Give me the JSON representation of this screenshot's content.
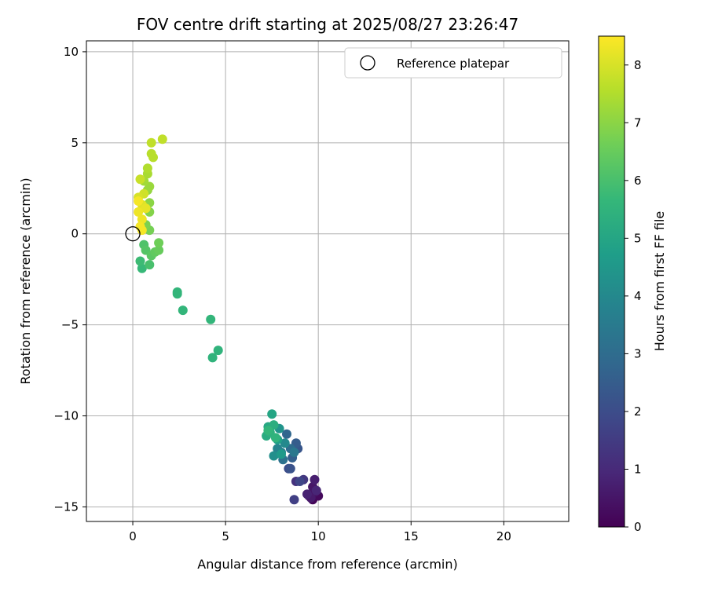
{
  "chart_data": {
    "type": "scatter",
    "title": "FOV centre drift starting at 2025/08/27 23:26:47",
    "xlabel": "Angular distance from reference (arcmin)",
    "ylabel": "Rotation from reference (arcmin)",
    "xlim": [
      -2.5,
      23.5
    ],
    "ylim": [
      -15.8,
      10.6
    ],
    "xticks": [
      0,
      5,
      10,
      15,
      20
    ],
    "yticks": [
      -15,
      -10,
      -5,
      0,
      5,
      10
    ],
    "xtick_labels": [
      "0",
      "5",
      "10",
      "15",
      "20"
    ],
    "ytick_labels": [
      "−15",
      "−10",
      "−5",
      "0",
      "5",
      "10"
    ],
    "grid": true,
    "legend": {
      "position": "top-right",
      "entries": [
        "Reference platepar"
      ]
    },
    "reference_point": {
      "x": 0,
      "y": 0,
      "marker": "open-circle",
      "label": "Reference platepar"
    },
    "colorbar": {
      "label": "Hours from first FF file",
      "range": [
        0,
        8.5
      ],
      "ticks": [
        0,
        1,
        2,
        3,
        4,
        5,
        6,
        7,
        8
      ],
      "tick_labels": [
        "0",
        "1",
        "2",
        "3",
        "4",
        "5",
        "6",
        "7",
        "8"
      ],
      "colormap": "viridis"
    },
    "colormap_stops": [
      "#440154",
      "#482878",
      "#3e4989",
      "#31688e",
      "#26828e",
      "#1f9e89",
      "#35b779",
      "#6ece58",
      "#b5de2b",
      "#fde725"
    ],
    "series": [
      {
        "color_by": "hours",
        "points": [
          {
            "x": 9.7,
            "y": -14.6,
            "h": 0.1
          },
          {
            "x": 10.0,
            "y": -14.4,
            "h": 0.2
          },
          {
            "x": 9.5,
            "y": -14.4,
            "h": 0.3
          },
          {
            "x": 9.8,
            "y": -14.2,
            "h": 0.4
          },
          {
            "x": 9.7,
            "y": -13.9,
            "h": 0.5
          },
          {
            "x": 9.6,
            "y": -14.5,
            "h": 0.6
          },
          {
            "x": 9.8,
            "y": -13.5,
            "h": 0.7
          },
          {
            "x": 9.4,
            "y": -14.3,
            "h": 0.8
          },
          {
            "x": 9.9,
            "y": -14.1,
            "h": 0.9
          },
          {
            "x": 8.8,
            "y": -13.6,
            "h": 1.2
          },
          {
            "x": 9.2,
            "y": -13.5,
            "h": 1.4
          },
          {
            "x": 8.7,
            "y": -14.6,
            "h": 1.6
          },
          {
            "x": 9.0,
            "y": -13.6,
            "h": 1.8
          },
          {
            "x": 8.4,
            "y": -12.9,
            "h": 2.0
          },
          {
            "x": 8.5,
            "y": -12.9,
            "h": 2.2
          },
          {
            "x": 8.9,
            "y": -11.8,
            "h": 2.3
          },
          {
            "x": 8.8,
            "y": -11.5,
            "h": 2.5
          },
          {
            "x": 8.6,
            "y": -12.3,
            "h": 2.6
          },
          {
            "x": 8.3,
            "y": -11.0,
            "h": 2.8
          },
          {
            "x": 8.5,
            "y": -11.8,
            "h": 3.0
          },
          {
            "x": 8.1,
            "y": -12.4,
            "h": 3.2
          },
          {
            "x": 8.7,
            "y": -12.0,
            "h": 3.4
          },
          {
            "x": 8.0,
            "y": -12.0,
            "h": 3.6
          },
          {
            "x": 7.8,
            "y": -11.8,
            "h": 3.8
          },
          {
            "x": 8.2,
            "y": -11.5,
            "h": 4.0
          },
          {
            "x": 7.6,
            "y": -12.2,
            "h": 4.2
          },
          {
            "x": 7.9,
            "y": -10.7,
            "h": 4.4
          },
          {
            "x": 8.0,
            "y": -12.1,
            "h": 4.6
          },
          {
            "x": 7.8,
            "y": -11.3,
            "h": 4.8
          },
          {
            "x": 7.5,
            "y": -9.9,
            "h": 5.0
          },
          {
            "x": 7.3,
            "y": -10.6,
            "h": 5.1
          },
          {
            "x": 7.2,
            "y": -11.1,
            "h": 5.2
          },
          {
            "x": 7.6,
            "y": -10.5,
            "h": 5.3
          },
          {
            "x": 7.4,
            "y": -10.9,
            "h": 5.4
          },
          {
            "x": 7.7,
            "y": -11.2,
            "h": 5.5
          },
          {
            "x": 7.3,
            "y": -10.8,
            "h": 5.6
          },
          {
            "x": 4.6,
            "y": -6.4,
            "h": 5.5
          },
          {
            "x": 4.3,
            "y": -6.8,
            "h": 5.5
          },
          {
            "x": 4.2,
            "y": -4.7,
            "h": 5.6
          },
          {
            "x": 2.7,
            "y": -4.2,
            "h": 5.6
          },
          {
            "x": 2.4,
            "y": -3.2,
            "h": 5.6
          },
          {
            "x": 2.4,
            "y": -3.3,
            "h": 5.6
          },
          {
            "x": 0.5,
            "y": -1.9,
            "h": 5.7
          },
          {
            "x": 0.4,
            "y": -1.5,
            "h": 5.8
          },
          {
            "x": 0.9,
            "y": -1.7,
            "h": 6.0
          },
          {
            "x": 0.6,
            "y": -0.6,
            "h": 6.1
          },
          {
            "x": 0.7,
            "y": -0.9,
            "h": 6.2
          },
          {
            "x": 1.0,
            "y": -1.2,
            "h": 6.3
          },
          {
            "x": 1.2,
            "y": -1.0,
            "h": 6.4
          },
          {
            "x": 1.4,
            "y": -0.9,
            "h": 6.5
          },
          {
            "x": 1.4,
            "y": -0.5,
            "h": 6.6
          },
          {
            "x": 0.9,
            "y": 0.2,
            "h": 6.7
          },
          {
            "x": 0.7,
            "y": 0.5,
            "h": 6.8
          },
          {
            "x": 0.9,
            "y": 1.2,
            "h": 6.9
          },
          {
            "x": 0.9,
            "y": 1.7,
            "h": 7.0
          },
          {
            "x": 0.8,
            "y": 2.4,
            "h": 7.1
          },
          {
            "x": 0.9,
            "y": 2.6,
            "h": 7.2
          },
          {
            "x": 0.6,
            "y": 2.9,
            "h": 7.3
          },
          {
            "x": 0.8,
            "y": 3.3,
            "h": 7.4
          },
          {
            "x": 0.8,
            "y": 3.6,
            "h": 7.5
          },
          {
            "x": 1.1,
            "y": 4.2,
            "h": 7.6
          },
          {
            "x": 1.0,
            "y": 4.4,
            "h": 7.6
          },
          {
            "x": 1.6,
            "y": 5.2,
            "h": 7.7
          },
          {
            "x": 1.0,
            "y": 5.0,
            "h": 7.7
          },
          {
            "x": 0.4,
            "y": 3.0,
            "h": 7.8
          },
          {
            "x": 0.6,
            "y": 2.2,
            "h": 7.9
          },
          {
            "x": 0.3,
            "y": 2.0,
            "h": 8.0
          },
          {
            "x": 0.5,
            "y": 1.6,
            "h": 8.1
          },
          {
            "x": 0.7,
            "y": 1.4,
            "h": 8.2
          },
          {
            "x": 0.3,
            "y": 1.2,
            "h": 8.3
          },
          {
            "x": 0.5,
            "y": 0.8,
            "h": 8.3
          },
          {
            "x": 0.4,
            "y": 0.4,
            "h": 8.4
          },
          {
            "x": 0.5,
            "y": 0.2,
            "h": 8.4
          },
          {
            "x": 0.3,
            "y": 1.8,
            "h": 8.4
          }
        ]
      }
    ]
  }
}
